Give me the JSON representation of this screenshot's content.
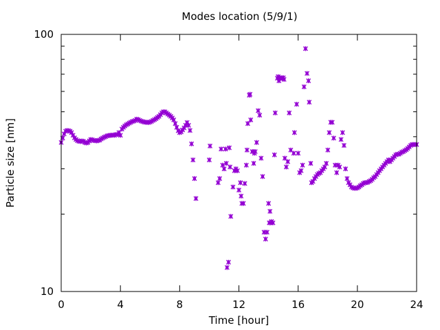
{
  "chart_data": {
    "type": "scatter",
    "title": "Modes location (5/9/1)",
    "xlabel": "Time [hour]",
    "ylabel": "Particle size [nm]",
    "xlim": [
      0,
      24
    ],
    "ylim": [
      10,
      100
    ],
    "yscale": "log",
    "grid": false,
    "x_ticks": [
      0,
      4,
      8,
      12,
      16,
      20,
      24
    ],
    "x_tick_labels": [
      "0",
      "4",
      "8",
      "12",
      "16",
      "20",
      "24"
    ],
    "y_major_ticks": [
      10,
      100
    ],
    "y_tick_labels": [
      "10",
      "100"
    ],
    "y_minor_ticks": [
      20,
      30,
      40,
      50,
      60,
      70,
      80,
      90
    ],
    "marker_color": "#9400d3",
    "series": [
      {
        "name": "",
        "points": [
          [
            0.0,
            38.0
          ],
          [
            0.1,
            39.5
          ],
          [
            0.2,
            41.0
          ],
          [
            0.3,
            42.0
          ],
          [
            0.4,
            42.3
          ],
          [
            0.5,
            42.2
          ],
          [
            0.6,
            42.0
          ],
          [
            0.7,
            41.5
          ],
          [
            0.8,
            40.5
          ],
          [
            0.9,
            39.6
          ],
          [
            1.0,
            39.0
          ],
          [
            1.1,
            38.6
          ],
          [
            1.2,
            38.4
          ],
          [
            1.3,
            38.3
          ],
          [
            1.4,
            38.5
          ],
          [
            1.5,
            38.4
          ],
          [
            1.6,
            38.0
          ],
          [
            1.7,
            37.8
          ],
          [
            1.8,
            38.0
          ],
          [
            1.9,
            38.5
          ],
          [
            2.0,
            39.0
          ],
          [
            2.1,
            38.9
          ],
          [
            2.2,
            38.7
          ],
          [
            2.3,
            38.6
          ],
          [
            2.4,
            38.5
          ],
          [
            2.5,
            38.7
          ],
          [
            2.6,
            38.8
          ],
          [
            2.7,
            39.2
          ],
          [
            2.8,
            39.5
          ],
          [
            2.9,
            39.8
          ],
          [
            3.0,
            40.0
          ],
          [
            3.1,
            40.3
          ],
          [
            3.2,
            40.4
          ],
          [
            3.3,
            40.5
          ],
          [
            3.4,
            40.5
          ],
          [
            3.5,
            40.6
          ],
          [
            3.6,
            40.5
          ],
          [
            3.7,
            40.8
          ],
          [
            3.8,
            40.8
          ],
          [
            3.9,
            41.5
          ],
          [
            4.0,
            40.5
          ],
          [
            4.1,
            42.8
          ],
          [
            4.2,
            43.5
          ],
          [
            4.3,
            44.0
          ],
          [
            4.4,
            44.5
          ],
          [
            4.5,
            44.8
          ],
          [
            4.6,
            45.2
          ],
          [
            4.7,
            45.5
          ],
          [
            4.8,
            45.8
          ],
          [
            4.9,
            46.0
          ],
          [
            5.0,
            46.3
          ],
          [
            5.1,
            46.8
          ],
          [
            5.2,
            46.6
          ],
          [
            5.3,
            46.3
          ],
          [
            5.4,
            46.0
          ],
          [
            5.5,
            45.8
          ],
          [
            5.6,
            45.6
          ],
          [
            5.7,
            45.5
          ],
          [
            5.8,
            45.5
          ],
          [
            5.9,
            45.4
          ],
          [
            6.0,
            45.6
          ],
          [
            6.1,
            45.9
          ],
          [
            6.2,
            46.3
          ],
          [
            6.3,
            46.6
          ],
          [
            6.4,
            47.0
          ],
          [
            6.5,
            47.5
          ],
          [
            6.6,
            48.0
          ],
          [
            6.7,
            48.7
          ],
          [
            6.8,
            49.5
          ],
          [
            6.9,
            50.0
          ],
          [
            7.0,
            50.0
          ],
          [
            7.1,
            49.5
          ],
          [
            7.2,
            49.0
          ],
          [
            7.3,
            48.5
          ],
          [
            7.4,
            48.0
          ],
          [
            7.5,
            47.3
          ],
          [
            7.6,
            46.5
          ],
          [
            7.7,
            45.0
          ],
          [
            7.8,
            43.5
          ],
          [
            7.9,
            42.2
          ],
          [
            8.0,
            41.5
          ],
          [
            8.1,
            41.8
          ],
          [
            8.2,
            42.5
          ],
          [
            8.3,
            43.3
          ],
          [
            8.4,
            44.3
          ],
          [
            8.5,
            45.4
          ],
          [
            8.6,
            44.3
          ],
          [
            8.7,
            42.3
          ],
          [
            8.8,
            37.5
          ],
          [
            8.9,
            32.5
          ],
          [
            9.0,
            27.5
          ],
          [
            9.1,
            23.0
          ],
          [
            10.0,
            32.5
          ],
          [
            10.05,
            36.8
          ],
          [
            10.6,
            26.5
          ],
          [
            10.7,
            27.5
          ],
          [
            10.8,
            35.8
          ],
          [
            10.9,
            31.0
          ],
          [
            11.0,
            30.0
          ],
          [
            11.1,
            35.8
          ],
          [
            11.15,
            31.5
          ],
          [
            11.2,
            12.4
          ],
          [
            11.3,
            13.0
          ],
          [
            11.35,
            36.2
          ],
          [
            11.4,
            30.5
          ],
          [
            11.45,
            19.6
          ],
          [
            11.6,
            25.5
          ],
          [
            11.7,
            29.5
          ],
          [
            11.8,
            30.0
          ],
          [
            11.9,
            29.5
          ],
          [
            12.0,
            24.8
          ],
          [
            12.1,
            26.5
          ],
          [
            12.15,
            23.5
          ],
          [
            12.2,
            22.0
          ],
          [
            12.3,
            22.0
          ],
          [
            12.4,
            26.3
          ],
          [
            12.5,
            31.0
          ],
          [
            12.55,
            35.5
          ],
          [
            12.6,
            45.0
          ],
          [
            12.7,
            58.0
          ],
          [
            12.75,
            58.5
          ],
          [
            12.8,
            46.5
          ],
          [
            12.9,
            35.0
          ],
          [
            13.0,
            31.5
          ],
          [
            13.05,
            34.5
          ],
          [
            13.1,
            35.0
          ],
          [
            13.2,
            38.0
          ],
          [
            13.3,
            50.5
          ],
          [
            13.4,
            48.5
          ],
          [
            13.5,
            33.0
          ],
          [
            13.6,
            28.0
          ],
          [
            13.7,
            17.0
          ],
          [
            13.8,
            16.0
          ],
          [
            13.9,
            17.0
          ],
          [
            14.0,
            22.0
          ],
          [
            14.1,
            20.5
          ],
          [
            14.05,
            18.5
          ],
          [
            14.15,
            18.5
          ],
          [
            14.2,
            18.7
          ],
          [
            14.3,
            18.5
          ],
          [
            14.4,
            34.0
          ],
          [
            14.45,
            49.5
          ],
          [
            14.6,
            67.5
          ],
          [
            14.65,
            68.5
          ],
          [
            14.7,
            66.0
          ],
          [
            14.8,
            67.5
          ],
          [
            14.85,
            67.5
          ],
          [
            14.9,
            67.8
          ],
          [
            15.0,
            67.8
          ],
          [
            15.05,
            66.8
          ],
          [
            15.1,
            33.0
          ],
          [
            15.2,
            30.5
          ],
          [
            15.3,
            32.0
          ],
          [
            15.4,
            49.5
          ],
          [
            15.5,
            35.5
          ],
          [
            15.7,
            34.5
          ],
          [
            15.75,
            41.5
          ],
          [
            15.9,
            53.5
          ],
          [
            16.0,
            34.5
          ],
          [
            16.1,
            29.0
          ],
          [
            16.2,
            29.5
          ],
          [
            16.3,
            31.0
          ],
          [
            16.4,
            62.5
          ],
          [
            16.5,
            88.0
          ],
          [
            16.6,
            70.5
          ],
          [
            16.7,
            66.0
          ],
          [
            16.75,
            54.5
          ],
          [
            16.85,
            31.5
          ],
          [
            16.9,
            26.5
          ],
          [
            17.0,
            26.8
          ],
          [
            17.1,
            27.5
          ],
          [
            17.2,
            28.0
          ],
          [
            17.3,
            28.5
          ],
          [
            17.4,
            28.8
          ],
          [
            17.5,
            29.0
          ],
          [
            17.6,
            29.5
          ],
          [
            17.7,
            30.0
          ],
          [
            17.8,
            30.5
          ],
          [
            17.9,
            31.5
          ],
          [
            18.0,
            35.5
          ],
          [
            18.1,
            41.5
          ],
          [
            18.2,
            45.5
          ],
          [
            18.3,
            45.5
          ],
          [
            18.4,
            39.5
          ],
          [
            18.5,
            31.0
          ],
          [
            18.6,
            29.0
          ],
          [
            18.7,
            31.0
          ],
          [
            18.8,
            30.5
          ],
          [
            18.9,
            39.0
          ],
          [
            19.0,
            41.5
          ],
          [
            19.1,
            37.0
          ],
          [
            19.2,
            30.0
          ],
          [
            19.3,
            27.5
          ],
          [
            19.4,
            26.5
          ],
          [
            19.5,
            26.0
          ],
          [
            19.6,
            25.5
          ],
          [
            19.7,
            25.3
          ],
          [
            19.8,
            25.2
          ],
          [
            19.9,
            25.2
          ],
          [
            20.0,
            25.3
          ],
          [
            20.1,
            25.5
          ],
          [
            20.2,
            25.8
          ],
          [
            20.3,
            26.0
          ],
          [
            20.4,
            26.3
          ],
          [
            20.5,
            26.5
          ],
          [
            20.6,
            26.5
          ],
          [
            20.7,
            26.6
          ],
          [
            20.8,
            26.8
          ],
          [
            20.9,
            27.0
          ],
          [
            21.0,
            27.3
          ],
          [
            21.1,
            27.7
          ],
          [
            21.2,
            28.0
          ],
          [
            21.3,
            28.5
          ],
          [
            21.4,
            29.0
          ],
          [
            21.5,
            29.5
          ],
          [
            21.6,
            30.0
          ],
          [
            21.7,
            30.5
          ],
          [
            21.8,
            31.0
          ],
          [
            21.9,
            31.5
          ],
          [
            22.0,
            32.0
          ],
          [
            22.1,
            32.5
          ],
          [
            22.2,
            32.0
          ],
          [
            22.3,
            32.5
          ],
          [
            22.4,
            33.0
          ],
          [
            22.5,
            33.5
          ],
          [
            22.6,
            34.0
          ],
          [
            22.7,
            34.2
          ],
          [
            22.8,
            34.2
          ],
          [
            22.9,
            34.5
          ],
          [
            23.0,
            34.8
          ],
          [
            23.1,
            35.0
          ],
          [
            23.2,
            35.3
          ],
          [
            23.3,
            35.6
          ],
          [
            23.4,
            36.0
          ],
          [
            23.5,
            36.5
          ],
          [
            23.6,
            37.0
          ],
          [
            23.7,
            37.3
          ],
          [
            23.8,
            37.3
          ],
          [
            23.9,
            37.3
          ],
          [
            24.0,
            37.3
          ]
        ]
      }
    ]
  }
}
